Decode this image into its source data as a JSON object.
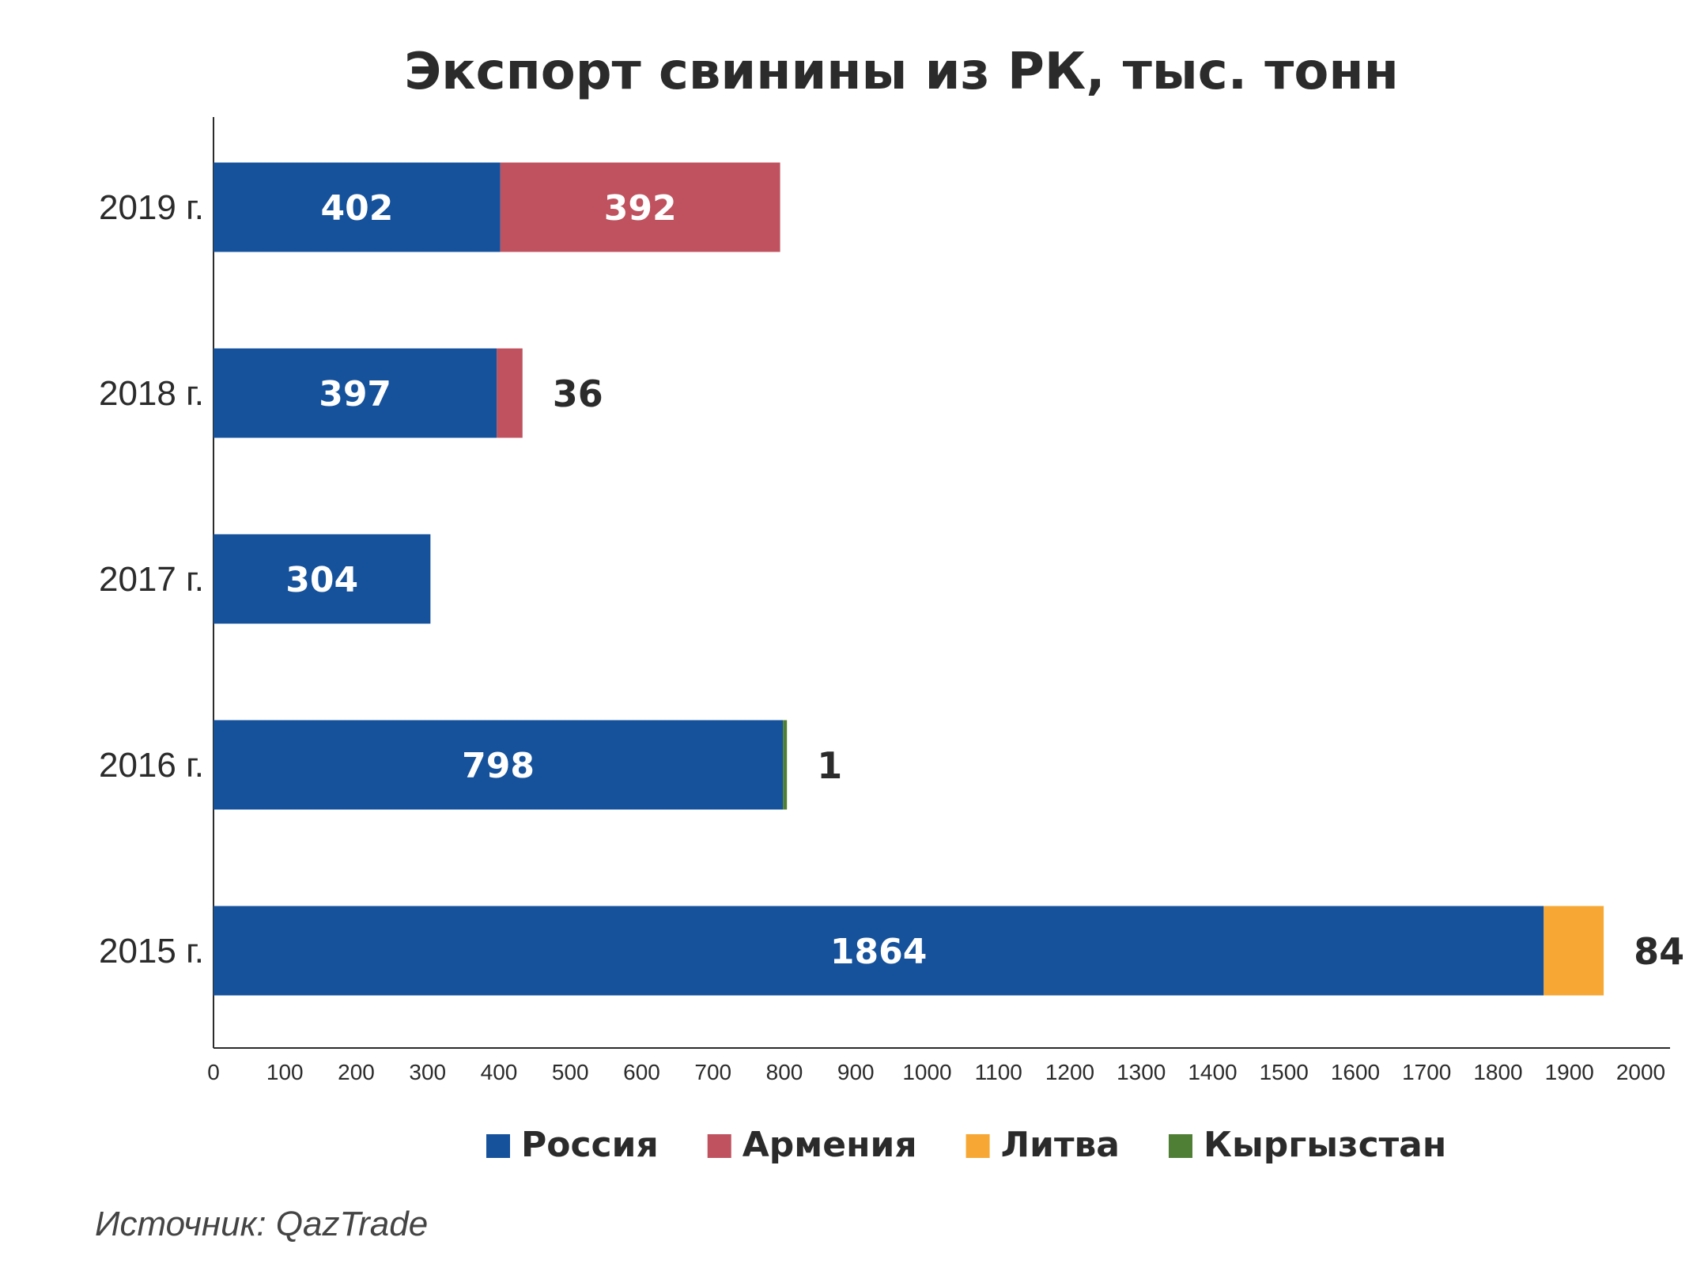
{
  "chart_data": {
    "type": "bar",
    "orientation": "horizontal",
    "stacked": true,
    "title": "Экспорт свинины из РК, тыс. тонн",
    "categories": [
      "2019 г.",
      "2018 г.",
      "2017 г.",
      "2016 г.",
      "2015 г."
    ],
    "series": [
      {
        "name": "Россия",
        "color": "#15529b",
        "values": [
          402,
          397,
          304,
          798,
          1864
        ]
      },
      {
        "name": "Армения",
        "color": "#bf525e",
        "values": [
          392,
          36,
          0,
          0,
          0
        ]
      },
      {
        "name": "Литва",
        "color": "#f7a733",
        "values": [
          0,
          0,
          0,
          0,
          84
        ]
      },
      {
        "name": "Кыргызстан",
        "color": "#4e7f35",
        "values": [
          0,
          0,
          0,
          1,
          0
        ]
      }
    ],
    "data_labels": [
      {
        "category": "2019 г.",
        "series": "Россия",
        "text": "402"
      },
      {
        "category": "2019 г.",
        "series": "Армения",
        "text": "392"
      },
      {
        "category": "2018 г.",
        "series": "Россия",
        "text": "397"
      },
      {
        "category": "2018 г.",
        "series": "Армения",
        "text": "36"
      },
      {
        "category": "2017 г.",
        "series": "Россия",
        "text": "304"
      },
      {
        "category": "2016 г.",
        "series": "Россия",
        "text": "798"
      },
      {
        "category": "2016 г.",
        "series": "Кыргызстан",
        "text": "1"
      },
      {
        "category": "2015 г.",
        "series": "Россия",
        "text": "1864"
      },
      {
        "category": "2015 г.",
        "series": "Литва",
        "text": "84"
      }
    ],
    "xlim": [
      0,
      2000
    ],
    "xticks": [
      "0",
      "100",
      "200",
      "300",
      "400",
      "500",
      "600",
      "700",
      "800",
      "900",
      "1000",
      "1100",
      "1200",
      "1300",
      "1400",
      "1500",
      "1600",
      "1700",
      "1800",
      "1900",
      "2000"
    ],
    "grid": false,
    "legend_position": "bottom"
  },
  "source": "Источник: QazTrade"
}
